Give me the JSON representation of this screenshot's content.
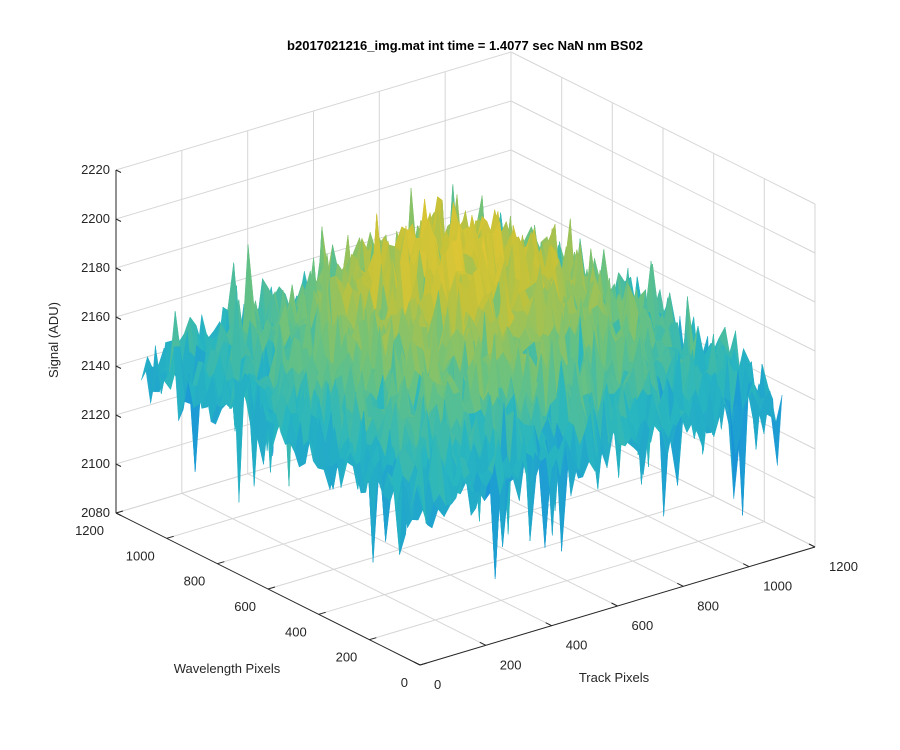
{
  "chart_data": {
    "type": "surface",
    "title": "b2017021216_img.mat int time = 1.4077 sec  NaN nm BS02",
    "xlabel": "Track Pixels",
    "ylabel": "Wavelength Pixels",
    "zlabel": "Signal (ADU)",
    "xlim": [
      0,
      1200
    ],
    "ylim": [
      0,
      1200
    ],
    "zlim": [
      2080,
      2220
    ],
    "x_ticks": [
      "0",
      "200",
      "400",
      "600",
      "800",
      "1000",
      "1200"
    ],
    "y_ticks": [
      "0",
      "200",
      "400",
      "600",
      "800",
      "1000",
      "1200"
    ],
    "z_ticks": [
      "2080",
      "2100",
      "2120",
      "2140",
      "2160",
      "2180",
      "2200",
      "2220"
    ],
    "surface_extent": {
      "x": [
        0,
        1100
      ],
      "y": [
        0,
        1100
      ]
    },
    "z_summary": {
      "center_peak": 2195,
      "edge_mean": 2145,
      "noise_sd": 8,
      "min": 2088,
      "max": 2218
    },
    "colormap": [
      "#0072bd",
      "#1a96d8",
      "#28b6c0",
      "#6cc27e",
      "#c2c23a",
      "#edc832"
    ],
    "grid": true,
    "view": "3d-default"
  }
}
